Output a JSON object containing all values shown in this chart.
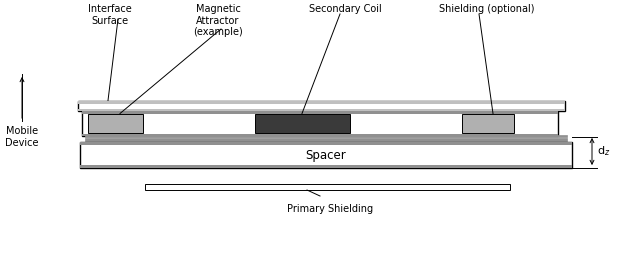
{
  "fig_width": 6.31,
  "fig_height": 2.66,
  "dpi": 100,
  "bg_color": "#ffffff",
  "labels": {
    "interface_surface": "Interface\nSurface",
    "magnetic_attractor": "Magnetic\nAttractor\n(example)",
    "secondary_coil": "Secondary Coil",
    "shielding_optional": "Shielding (optional)",
    "mobile_device": "Mobile\nDevice",
    "spacer": "Spacer",
    "primary_shielding": "Primary Shielding",
    "dz": "d$_z$"
  },
  "colors": {
    "light_gray": "#b0b0b0",
    "dark_gray": "#3a3a3a",
    "mid_gray": "#909090",
    "stripe_gray": "#c0c0c0",
    "white": "#ffffff",
    "black": "#000000",
    "outline": "#000000"
  }
}
